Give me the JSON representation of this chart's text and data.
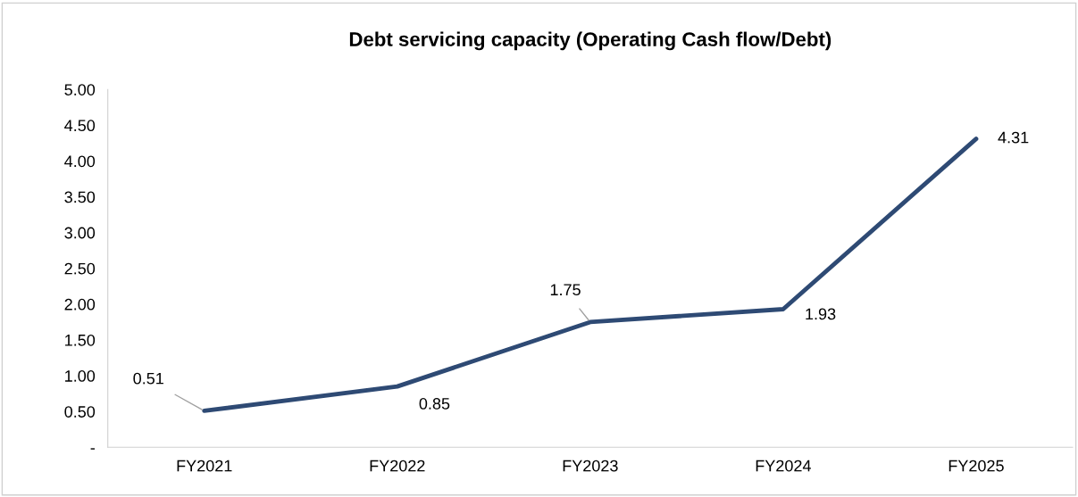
{
  "chart_data": {
    "type": "line",
    "title": "Debt servicing capacity (Operating Cash flow/Debt)",
    "categories": [
      "FY2021",
      "FY2022",
      "FY2023",
      "FY2024",
      "FY2025"
    ],
    "series": [
      {
        "color": "#2e4a74",
        "values": [
          0.51,
          0.85,
          1.75,
          1.93,
          4.31
        ]
      }
    ],
    "ylim": [
      0,
      5
    ],
    "yticks": [
      {
        "value": 0,
        "label": "-"
      },
      {
        "value": 0.5,
        "label": "0.50"
      },
      {
        "value": 1,
        "label": "1.00"
      },
      {
        "value": 1.5,
        "label": "1.50"
      },
      {
        "value": 2,
        "label": "2.00"
      },
      {
        "value": 2.5,
        "label": "2.50"
      },
      {
        "value": 3,
        "label": "3.00"
      },
      {
        "value": 3.5,
        "label": "3.50"
      },
      {
        "value": 4,
        "label": "4.00"
      },
      {
        "value": 4.5,
        "label": "4.50"
      },
      {
        "value": 5,
        "label": "5.00"
      }
    ],
    "grid": false,
    "legend": false,
    "marker": "none",
    "line_style": "solid",
    "data_labels": true
  }
}
